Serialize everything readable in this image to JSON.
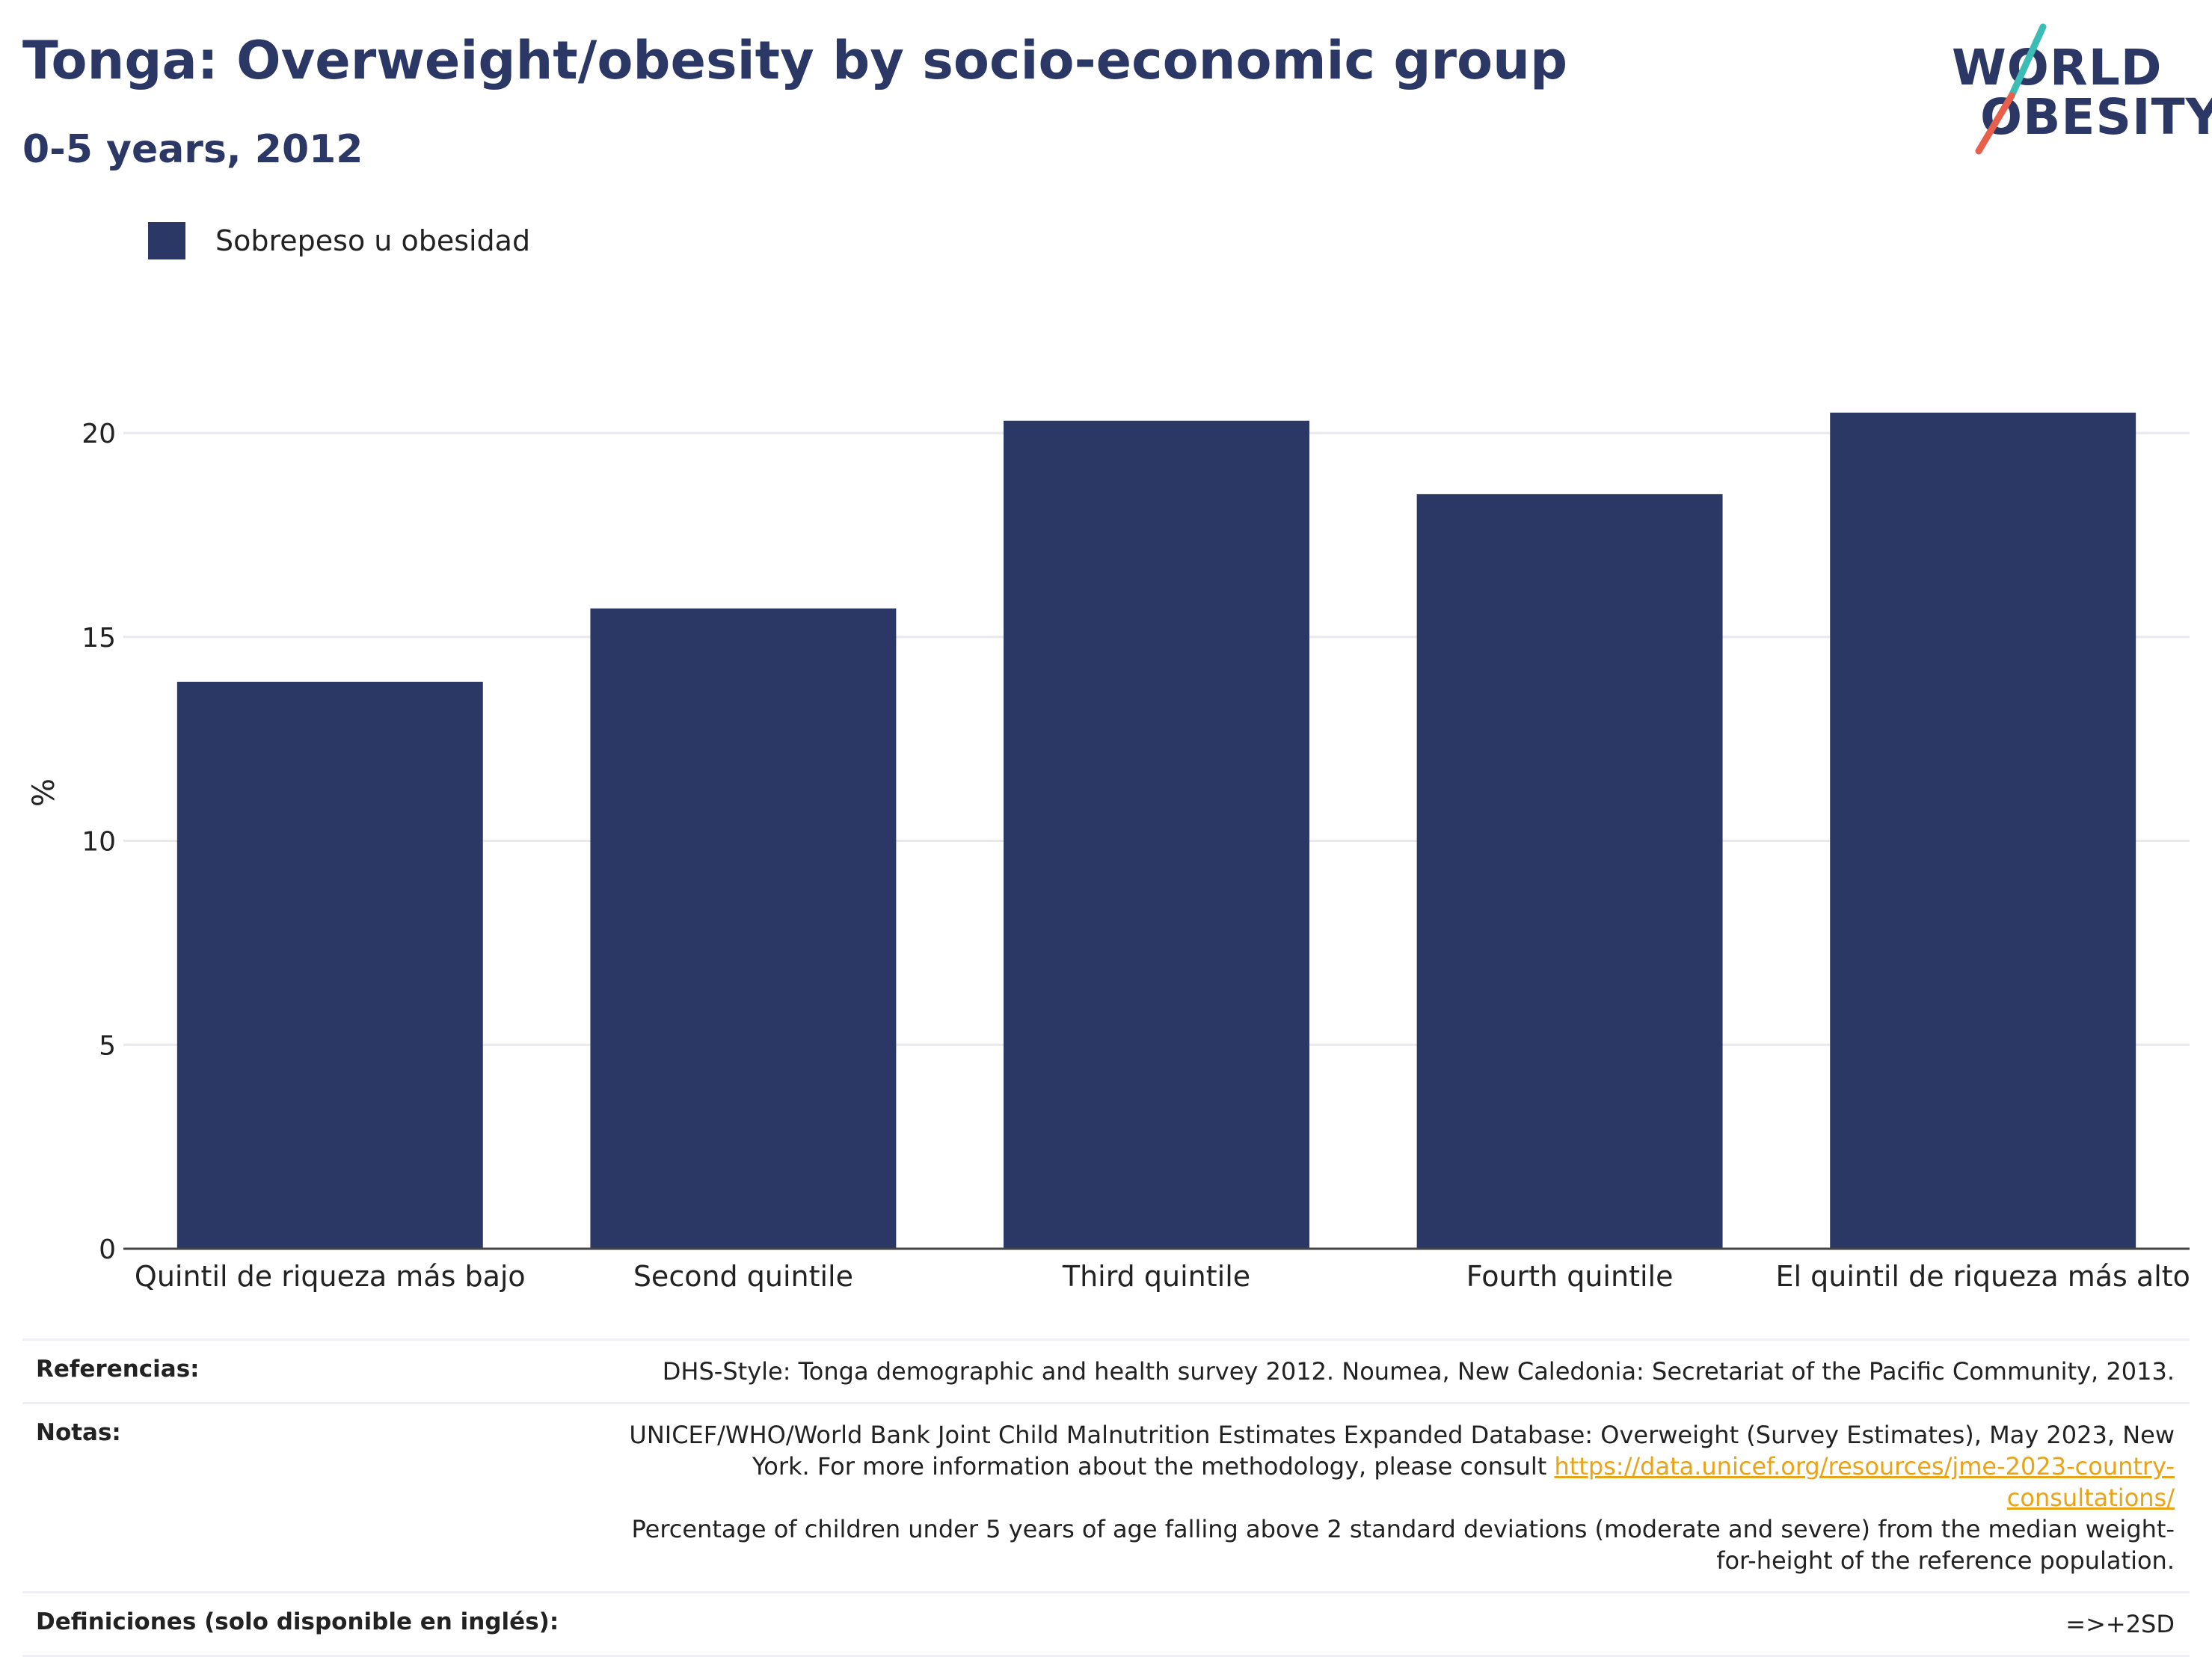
{
  "header": {
    "title": "Tonga: Overweight/obesity by socio-economic group",
    "subtitle": "0-5 years, 2012"
  },
  "logo": {
    "line1": "WORLD",
    "line2": "OBESITY",
    "colors": {
      "text": "#2b3764",
      "slash_top": "#3bbcb5",
      "slash_bottom": "#e8604c"
    }
  },
  "legend": {
    "label": "Sobrepeso u obesidad",
    "color": "#2b3764"
  },
  "chart_data": {
    "type": "bar",
    "categories": [
      "Quintil de riqueza más bajo",
      "Second quintile",
      "Third quintile",
      "Fourth quintile",
      "El quintil de riqueza más alto"
    ],
    "series": [
      {
        "name": "Sobrepeso u obesidad",
        "values": [
          13.9,
          15.7,
          20.3,
          18.5,
          20.5
        ],
        "color": "#2b3764"
      }
    ],
    "ylabel": "%",
    "ylim": [
      0,
      22
    ],
    "yticks": [
      0,
      5,
      10,
      15,
      20
    ],
    "grid": true,
    "legend_position": "top-left"
  },
  "references": {
    "sources_label": "Referencias:",
    "sources_value": "DHS-Style: Tonga demographic and health survey 2012. Noumea, New Caledonia: Secretariat of the Pacific Community, 2013.",
    "notes_label": "Notas:",
    "notes_text_1": "UNICEF/WHO/World Bank Joint Child Malnutrition Estimates Expanded Database: Overweight (Survey Estimates), May 2023, New York. For more information about the methodology, please consult ",
    "notes_link": "https://data.unicef.org/resources/jme-2023-country-consultations/",
    "notes_text_2": "Percentage of children under 5 years of age falling above 2 standard deviations (moderate and severe) from the median weight-for-height of the reference population.",
    "definitions_label": "Definiciones (solo disponible en inglés):",
    "definitions_value": "=>+2SD"
  }
}
